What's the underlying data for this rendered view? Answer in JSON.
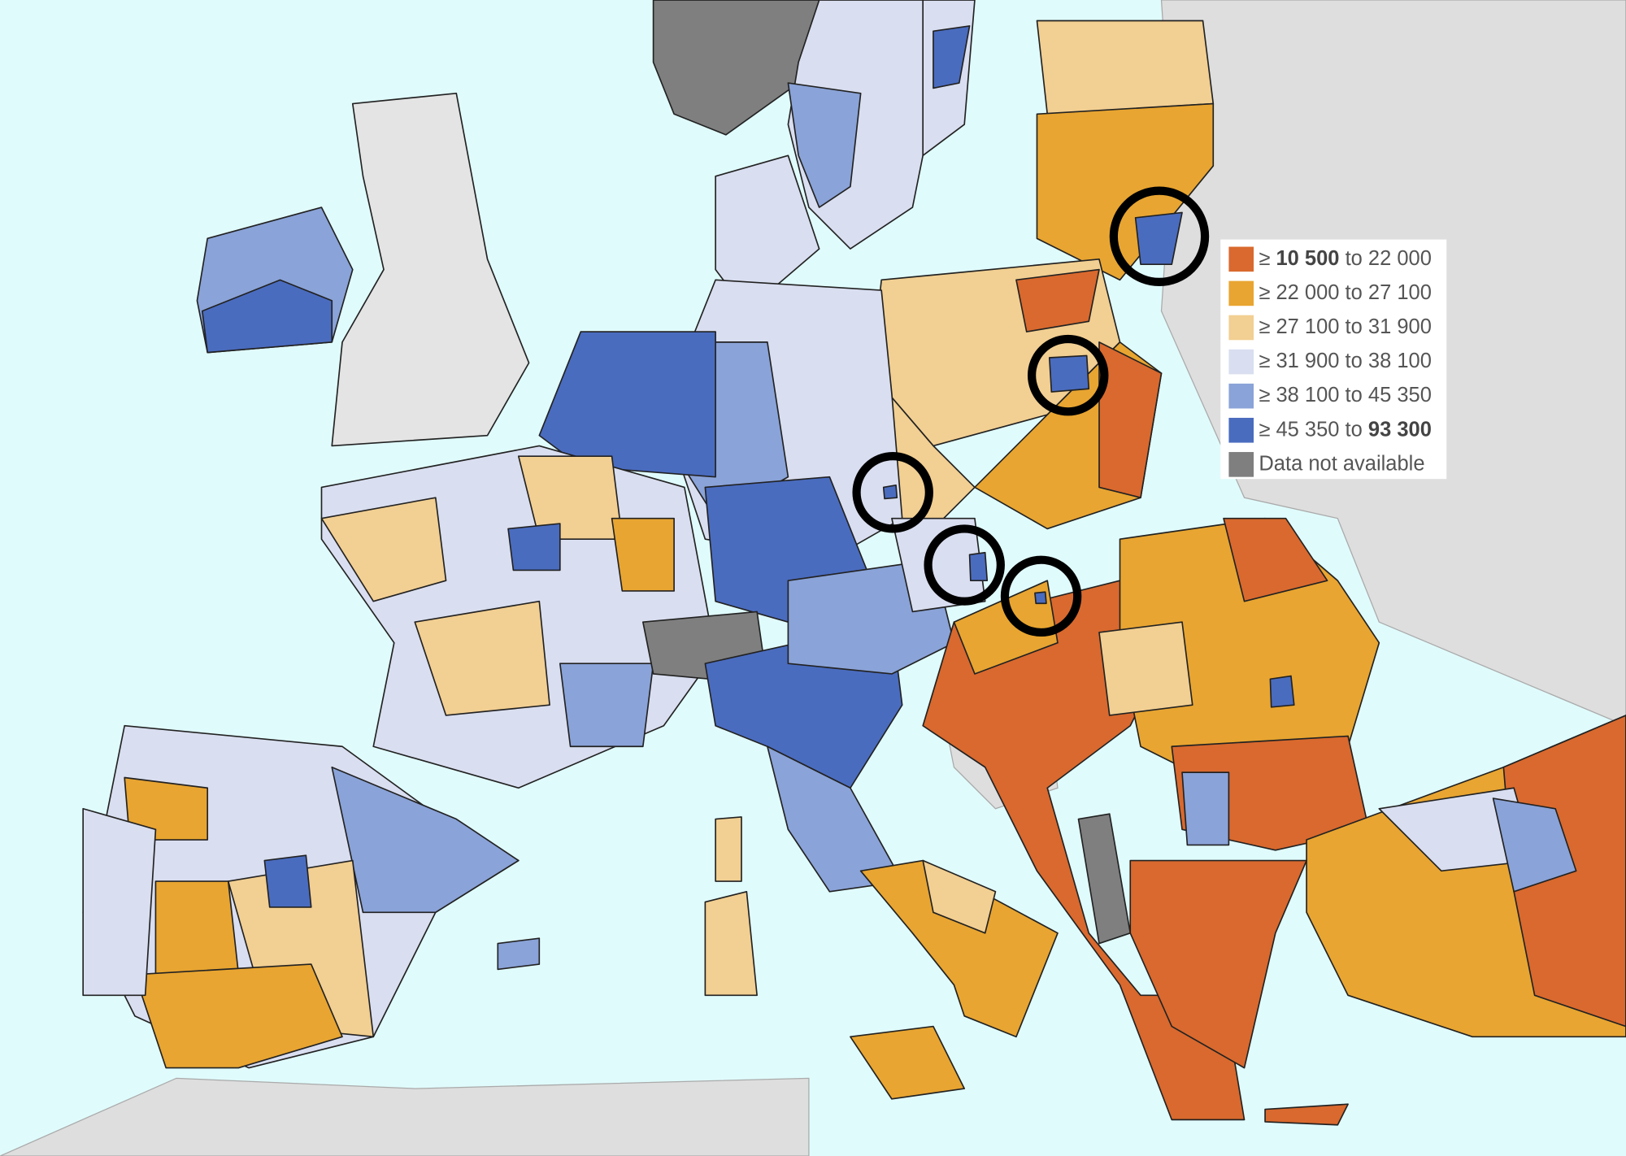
{
  "legend": {
    "items": [
      {
        "color": "#d9692e",
        "segments": [
          {
            "text": "≥ ",
            "bold": false
          },
          {
            "text": "10 500",
            "bold": true
          },
          {
            "text": " to 22 000",
            "bold": false
          }
        ]
      },
      {
        "color": "#e8a531",
        "segments": [
          {
            "text": "≥ 22 000 to 27 100",
            "bold": false
          }
        ]
      },
      {
        "color": "#f2cf92",
        "segments": [
          {
            "text": "≥ 27 100 to 31 900",
            "bold": false
          }
        ]
      },
      {
        "color": "#d9def0",
        "segments": [
          {
            "text": "≥ 31 900 to 38 100",
            "bold": false
          }
        ]
      },
      {
        "color": "#8aa3d8",
        "segments": [
          {
            "text": "≥ 38 100 to 45 350",
            "bold": false
          }
        ]
      },
      {
        "color": "#4a6cbf",
        "segments": [
          {
            "text": "≥ 45 350 to ",
            "bold": false
          },
          {
            "text": "93 300",
            "bold": true
          }
        ]
      },
      {
        "color": "#7f7f7f",
        "segments": [
          {
            "text": "Data not available",
            "bold": false
          }
        ]
      }
    ]
  }
}
